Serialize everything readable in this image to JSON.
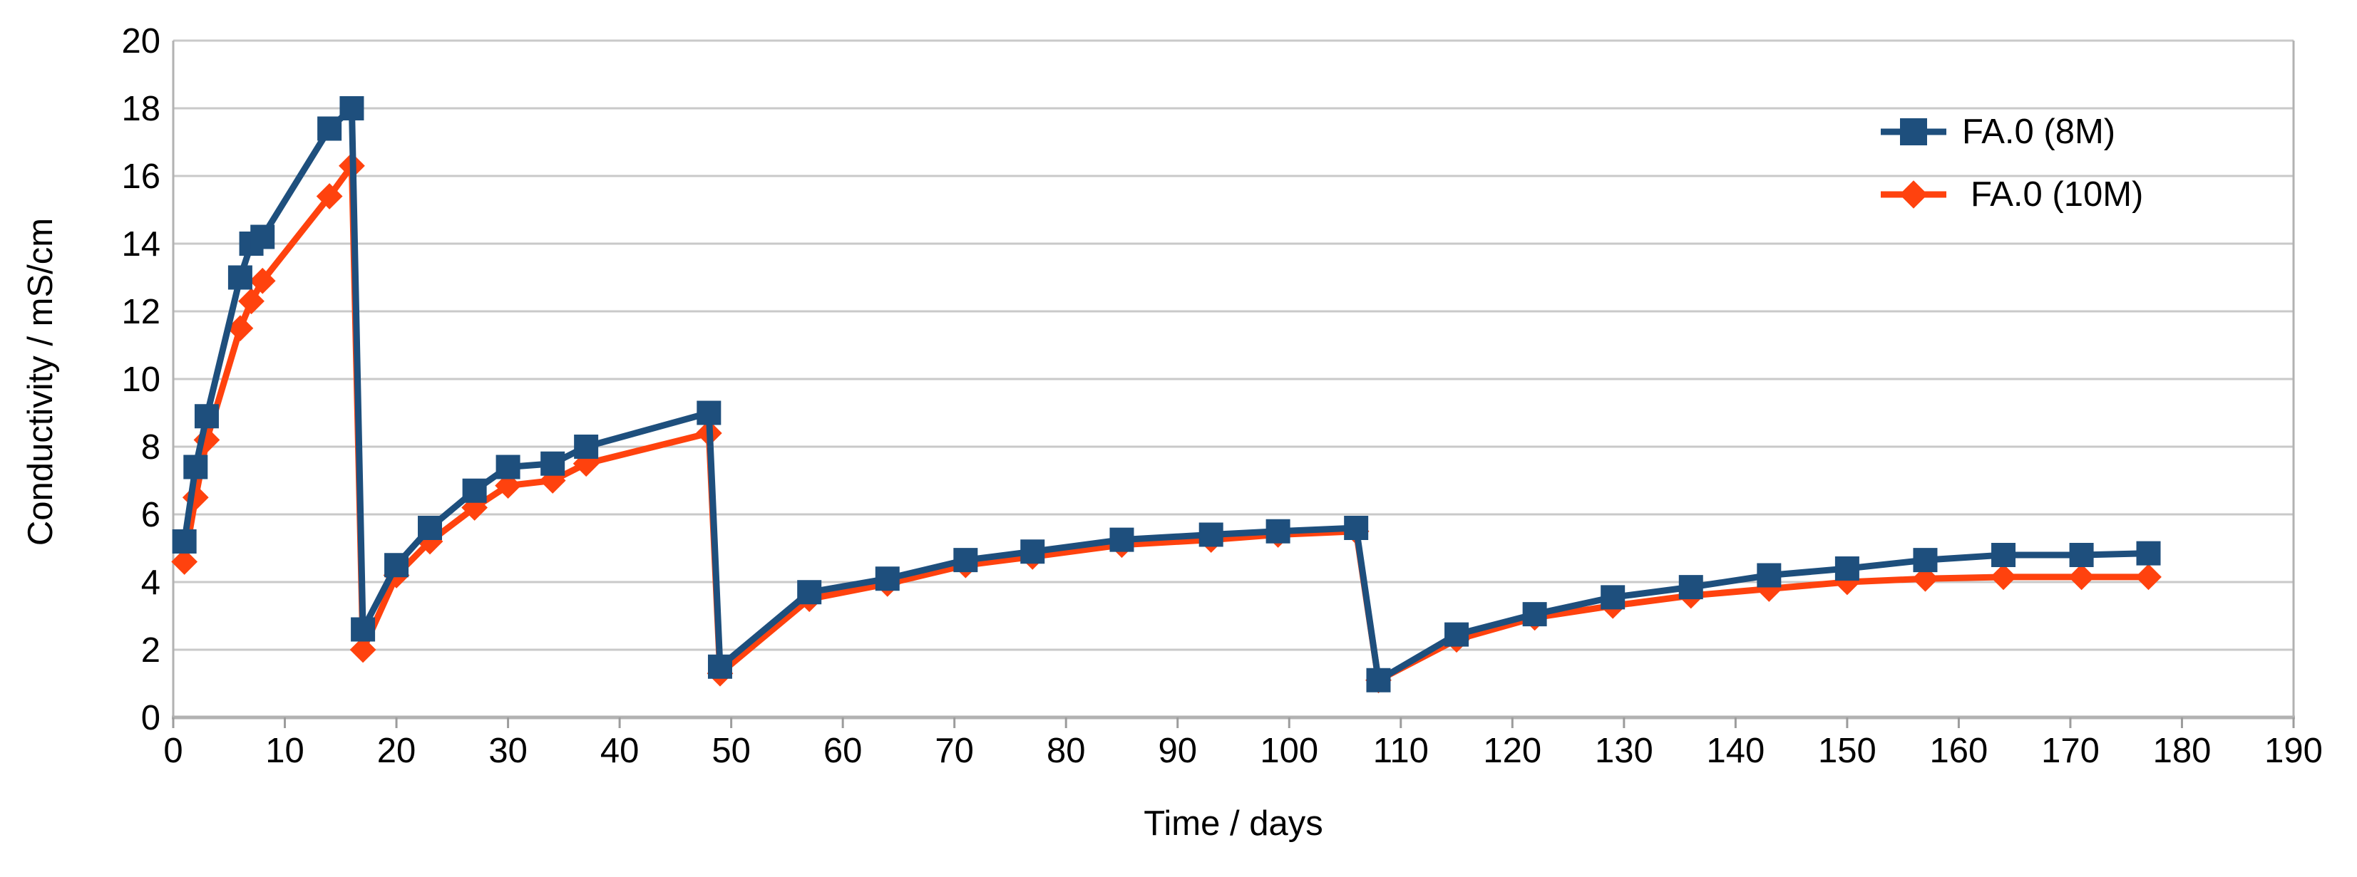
{
  "chart_data": {
    "type": "line",
    "title": "",
    "xlabel": "Time / days",
    "ylabel": "Conductivity / mS/cm",
    "xlim": [
      0,
      190
    ],
    "ylim": [
      0,
      20
    ],
    "x_ticks": [
      0,
      10,
      20,
      30,
      40,
      50,
      60,
      70,
      80,
      90,
      100,
      110,
      120,
      130,
      140,
      150,
      160,
      170,
      180,
      190
    ],
    "y_ticks": [
      0,
      2,
      4,
      6,
      8,
      10,
      12,
      14,
      16,
      18,
      20
    ],
    "grid": "horizontal-only",
    "legend_position": "top-right-inside",
    "colors": {
      "gridline": "#c9c9c9",
      "axis_line": "#b2b2b2",
      "tick": "#9c9c9c",
      "text": "#000000",
      "background": "#ffffff"
    },
    "x": [
      1,
      2,
      3,
      6,
      7,
      8,
      14,
      16,
      17,
      20,
      23,
      27,
      30,
      34,
      37,
      48,
      49,
      57,
      64,
      71,
      77,
      85,
      93,
      99,
      106,
      108,
      115,
      122,
      129,
      136,
      143,
      150,
      157,
      164,
      171,
      177
    ],
    "series": [
      {
        "name": "FA.0 (8M)",
        "color": "#1e4f7d",
        "marker": "square",
        "values": [
          5.2,
          7.4,
          8.9,
          13.0,
          14.0,
          14.2,
          17.4,
          18.0,
          2.6,
          4.5,
          5.6,
          6.7,
          7.4,
          7.5,
          8.0,
          9.0,
          1.5,
          3.7,
          4.1,
          4.65,
          4.9,
          5.25,
          5.4,
          5.5,
          5.6,
          1.1,
          2.45,
          3.05,
          3.55,
          3.85,
          4.2,
          4.4,
          4.65,
          4.8,
          4.8,
          4.85
        ]
      },
      {
        "name": "FA.0 (10M)",
        "color": "#ff420e",
        "marker": "diamond",
        "values": [
          4.6,
          6.5,
          8.2,
          11.5,
          12.3,
          12.9,
          15.4,
          16.3,
          2.0,
          4.2,
          5.2,
          6.2,
          6.85,
          7.0,
          7.5,
          8.4,
          1.3,
          3.5,
          3.95,
          4.5,
          4.75,
          5.1,
          5.25,
          5.4,
          5.5,
          1.1,
          2.3,
          2.95,
          3.3,
          3.6,
          3.8,
          4.0,
          4.1,
          4.15,
          4.15,
          4.15
        ]
      }
    ]
  }
}
